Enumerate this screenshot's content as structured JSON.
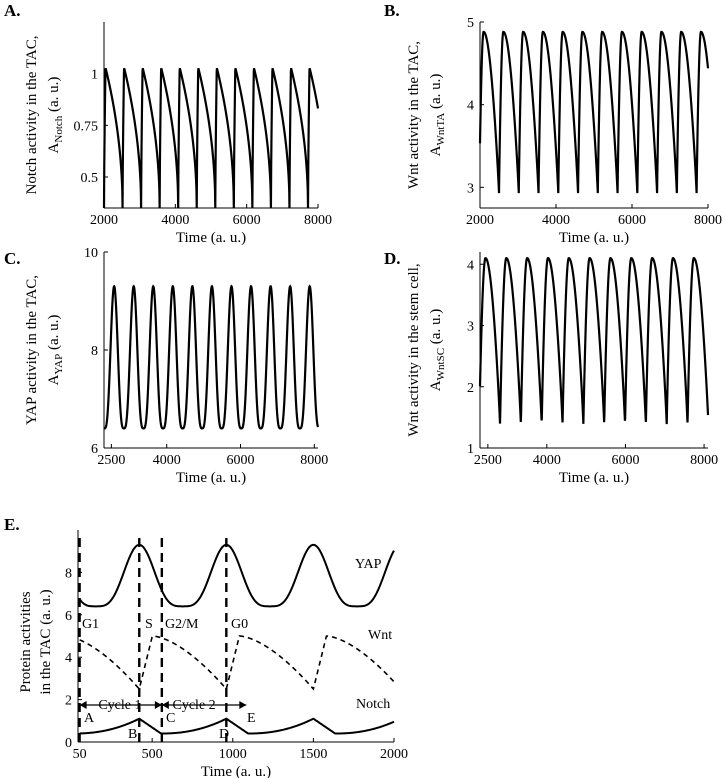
{
  "panels": [
    {
      "id": "A",
      "label": "A.",
      "ylabel_line1": "Notch activity in the TAC,",
      "ylabel_sym": "A",
      "ylabel_sub": "Notch",
      "ylabel_unit": " (a. u.)",
      "xlabel": "Time (a. u.)",
      "xlim": [
        2000,
        8000
      ],
      "ylim": [
        0.35,
        1.25
      ],
      "xticks": [
        2000,
        4000,
        6000,
        8000
      ],
      "yticks": [
        0.5,
        0.75,
        1
      ],
      "ytick_labels": [
        "0.5",
        "0.75",
        "1"
      ],
      "series": {
        "period": 520,
        "phase": 2000,
        "min": 0.35,
        "max": 1.03,
        "rise": 0.08,
        "fall": 0.92,
        "shape": "spike"
      }
    },
    {
      "id": "B",
      "label": "B.",
      "ylabel_line1": "Wnt activity in the TAC,",
      "ylabel_sym": "A",
      "ylabel_sub": "WntTA",
      "ylabel_unit": " (a. u.)",
      "xlabel": "Time (a. u.)",
      "xlim": [
        2000,
        8000
      ],
      "ylim": [
        2.75,
        5.0
      ],
      "xticks": [
        2000,
        4000,
        6000,
        8000
      ],
      "yticks": [
        3,
        4,
        5
      ],
      "ytick_labels": [
        "3",
        "4",
        "5"
      ],
      "series": {
        "period": 520,
        "phase": 1980,
        "min": 2.93,
        "max": 4.88,
        "rise": 0.22,
        "fall": 0.78,
        "shape": "saw"
      }
    },
    {
      "id": "C",
      "label": "C.",
      "ylabel_line1": "YAP activity in the TAC,",
      "ylabel_sym": "A",
      "ylabel_sub": "YAP",
      "ylabel_unit": " (a. u.)",
      "xlabel": "Time (a. u.)",
      "xlim": [
        2300,
        8100
      ],
      "ylim": [
        6,
        10
      ],
      "xticks": [
        2500,
        4000,
        6000,
        8000
      ],
      "yticks": [
        6,
        8,
        10
      ],
      "ytick_labels": [
        "6",
        "8",
        "10"
      ],
      "series": {
        "period": 530,
        "phase": 2310,
        "min": 6.4,
        "max": 9.3,
        "rise": 0.5,
        "fall": 0.5,
        "shape": "peak"
      }
    },
    {
      "id": "D",
      "label": "D.",
      "ylabel_line1": "Wnt activity in the stem cell,",
      "ylabel_sym": "A",
      "ylabel_sub": "WntSC",
      "ylabel_unit": " (a. u.)",
      "xlabel": "Time (a. u.)",
      "xlim": [
        2300,
        8100
      ],
      "ylim": [
        1,
        4.2
      ],
      "xticks": [
        2500,
        4000,
        6000,
        8000
      ],
      "yticks": [
        1,
        2,
        3,
        4
      ],
      "ytick_labels": [
        "1",
        "2",
        "3",
        "4"
      ],
      "series": {
        "period": 530,
        "phase": 2280,
        "min": 1.38,
        "max": 4.1,
        "rise": 0.3,
        "fall": 0.7,
        "shape": "saw"
      }
    }
  ],
  "panelE": {
    "label": "E.",
    "ylabel_line1": "Protein activities",
    "ylabel_line2": "in the TAC (a. u.)",
    "xlabel": "Time (a. u.)",
    "xlim": [
      40,
      2000
    ],
    "ylim": [
      0,
      10
    ],
    "xticks": [
      50,
      500,
      1000,
      1500,
      2000
    ],
    "yticks": [
      0,
      2,
      4,
      6,
      8
    ],
    "series_labels": {
      "yap": "YAP",
      "wnt": "Wnt",
      "notch": "Notch"
    },
    "dashed_lines_x": [
      50,
      420,
      560,
      960
    ],
    "phase_labels": [
      "G1",
      "S",
      "G2/M",
      "G0"
    ],
    "cycle_labels": [
      "Cycle 1",
      "Cycle 2"
    ],
    "point_labels": [
      "A",
      "B",
      "C",
      "D",
      "E"
    ]
  },
  "chart_data": [
    {
      "type": "line",
      "title": "A.",
      "xlabel": "Time (a. u.)",
      "ylabel": "Notch activity in the TAC, A_Notch (a. u.)",
      "xlim": [
        2000,
        8000
      ],
      "ylim": [
        0.35,
        1.25
      ],
      "series": [
        {
          "name": "Notch",
          "period": 520,
          "min": 0.35,
          "max": 1.03
        }
      ]
    },
    {
      "type": "line",
      "title": "B.",
      "xlabel": "Time (a. u.)",
      "ylabel": "Wnt activity in the TAC, A_WntTA (a. u.)",
      "xlim": [
        2000,
        8000
      ],
      "ylim": [
        2.75,
        5.0
      ],
      "series": [
        {
          "name": "Wnt TA",
          "period": 520,
          "min": 2.93,
          "max": 4.88
        }
      ]
    },
    {
      "type": "line",
      "title": "C.",
      "xlabel": "Time (a. u.)",
      "ylabel": "YAP activity in the TAC, A_YAP (a. u.)",
      "xlim": [
        2300,
        8100
      ],
      "ylim": [
        6,
        10
      ],
      "series": [
        {
          "name": "YAP",
          "period": 530,
          "min": 6.4,
          "max": 9.3
        }
      ]
    },
    {
      "type": "line",
      "title": "D.",
      "xlabel": "Time (a. u.)",
      "ylabel": "Wnt activity in the stem cell, A_WntSC (a. u.)",
      "xlim": [
        2300,
        8100
      ],
      "ylim": [
        1,
        4.2
      ],
      "series": [
        {
          "name": "Wnt SC",
          "period": 530,
          "min": 1.38,
          "max": 4.1
        }
      ]
    },
    {
      "type": "line",
      "title": "E.",
      "xlabel": "Time (a. u.)",
      "ylabel": "Protein activities in the TAC (a. u.)",
      "xlim": [
        40,
        2000
      ],
      "ylim": [
        0,
        10
      ],
      "series": [
        {
          "name": "YAP",
          "x": [
            50,
            200,
            420,
            700,
            960,
            1250,
            1500,
            2000
          ],
          "y": [
            8.2,
            6.4,
            9.3,
            6.4,
            9.3,
            6.4,
            9.3,
            8.8
          ]
        },
        {
          "name": "Wnt",
          "x": [
            50,
            420,
            500,
            960,
            1000,
            1480,
            1550,
            2000
          ],
          "y": [
            5.0,
            2.6,
            5.0,
            2.4,
            5.0,
            2.6,
            5.0,
            3.2
          ]
        },
        {
          "name": "Notch",
          "x": [
            50,
            420,
            560,
            960,
            1100,
            1480,
            1600,
            2000
          ],
          "y": [
            0.4,
            1.1,
            0.4,
            1.1,
            0.4,
            1.1,
            0.4,
            1.0
          ]
        }
      ]
    }
  ]
}
